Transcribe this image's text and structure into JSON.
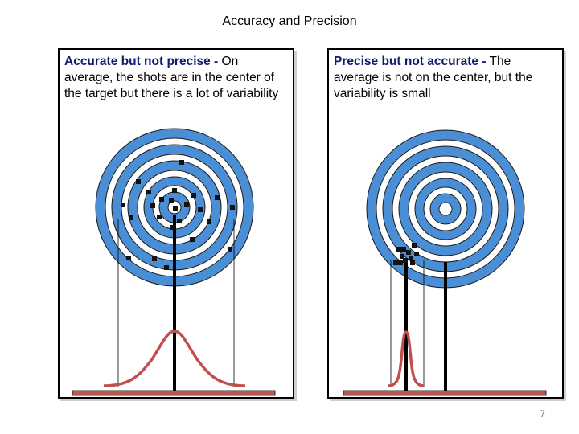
{
  "title": "Accuracy and Precision",
  "panels": {
    "left": {
      "lead": "Accurate but not precise -",
      "text": " On average, the shots are in the center of the target but there is a lot of variability"
    },
    "right": {
      "lead": "Precise but not accurate -",
      "text": " The average is not on the center, but the variability is small"
    }
  },
  "colors": {
    "ring": "#4a8fd6",
    "ring_gap": "#ffffff",
    "ring_outline": "#1a1a1a",
    "curve": "#c0504d",
    "base": "#b85a50",
    "shot": "#111111"
  },
  "page_number": "7"
}
